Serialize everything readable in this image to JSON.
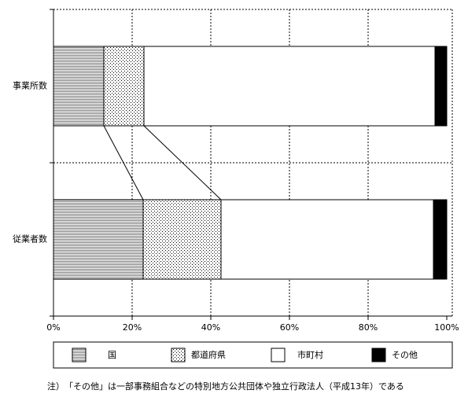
{
  "chart_data": {
    "type": "stacked-barh",
    "categories": [
      "事業所数",
      "従業者数"
    ],
    "series": [
      {
        "name": "国",
        "color": "#808080",
        "pattern": "hlines",
        "values": [
          12.8,
          22.8
        ]
      },
      {
        "name": "都道府県",
        "color": "#000000",
        "pattern": "dots",
        "values": [
          10.2,
          19.8
        ]
      },
      {
        "name": "市町村",
        "color": "#ffffff",
        "pattern": "none",
        "values": [
          74.0,
          54.0
        ]
      },
      {
        "name": "その他",
        "color": "#000000",
        "pattern": "solid",
        "values": [
          3.0,
          3.4
        ]
      }
    ],
    "xlim": [
      0,
      100
    ],
    "xticks": [
      {
        "value": 0,
        "label": "0%"
      },
      {
        "value": 20,
        "label": "20%"
      },
      {
        "value": 40,
        "label": "40%"
      },
      {
        "value": 60,
        "label": "60%"
      },
      {
        "value": 80,
        "label": "80%"
      },
      {
        "value": 100,
        "label": "100%"
      }
    ],
    "grid": true,
    "note": "注）　「その他」は一部事務組合などの特別地方公共団体や独立行政法人（平成13年）である"
  }
}
